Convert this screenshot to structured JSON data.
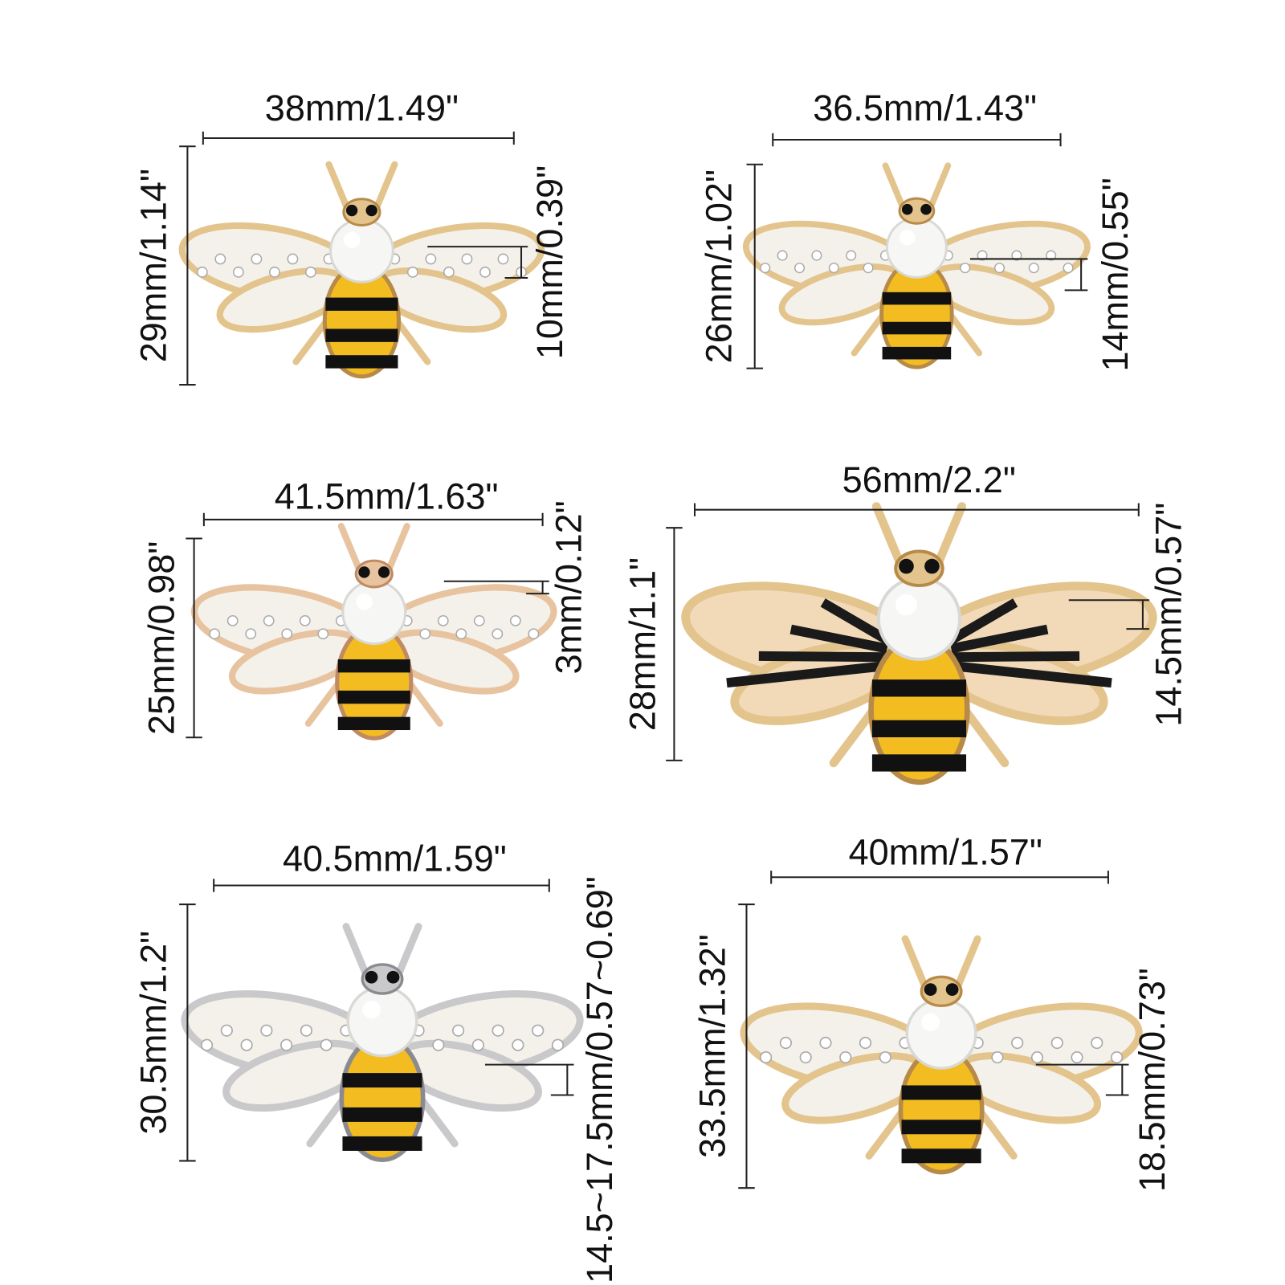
{
  "items": [
    {
      "width": "38mm/1.49\"",
      "height": "29mm/1.14\"",
      "pin": "10mm/0.39\""
    },
    {
      "width": "36.5mm/1.43\"",
      "height": "26mm/1.02\"",
      "pin": "14mm/0.55\""
    },
    {
      "width": "41.5mm/1.63\"",
      "height": "25mm/0.98\"",
      "pin": "3mm/0.12\""
    },
    {
      "width": "56mm/2.2\"",
      "height": "28mm/1.1\"",
      "pin": "14.5mm/0.57\""
    },
    {
      "width": "40.5mm/1.59\"",
      "height": "30.5mm/1.2\"",
      "pin": "14.5~17.5mm/0.57~0.69\""
    },
    {
      "width": "40mm/1.57\"",
      "height": "33.5mm/1.32\"",
      "pin": "18.5mm/0.73\""
    }
  ]
}
